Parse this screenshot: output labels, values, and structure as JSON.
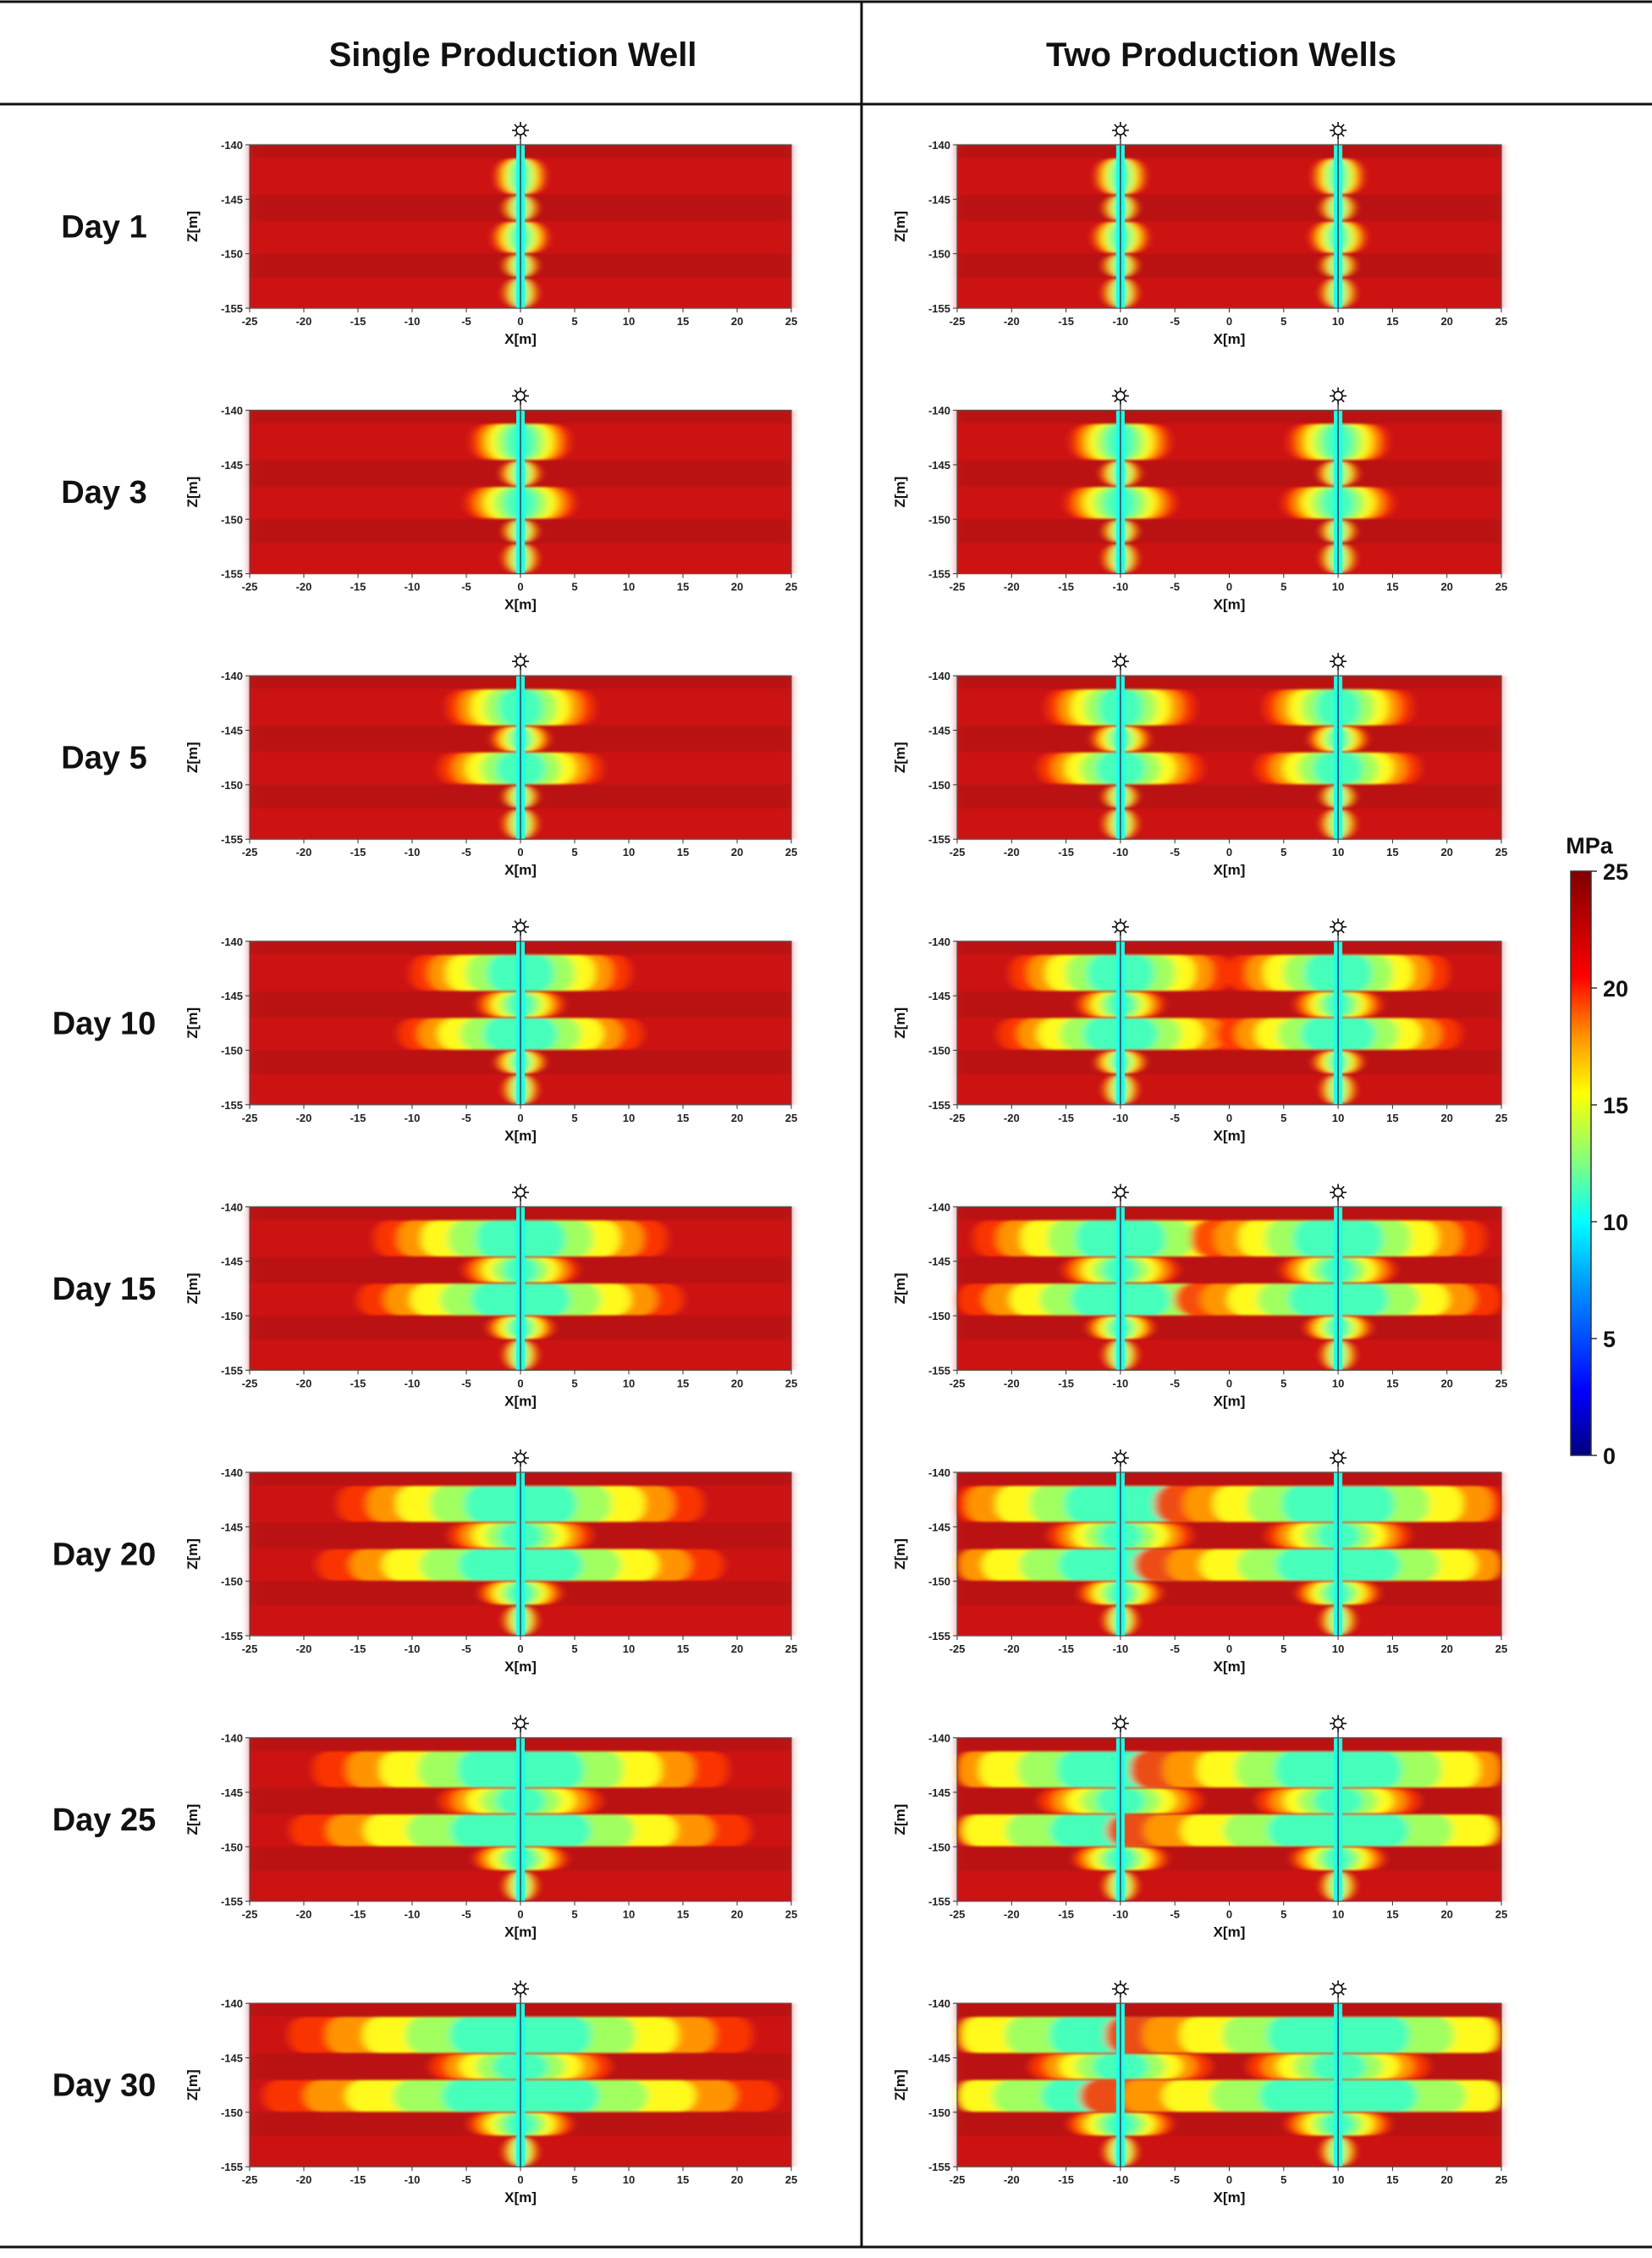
{
  "columns": [
    "Single Production Well",
    "Two Production Wells"
  ],
  "rows": [
    "Day 1",
    "Day 3",
    "Day 5",
    "Day 10",
    "Day 15",
    "Day 20",
    "Day 25",
    "Day 30"
  ],
  "chart_data": {
    "type": "heatmap",
    "panel_grid": {
      "rows": 8,
      "columns": 2
    },
    "xlabel": "X[m]",
    "ylabel": "Z[m]",
    "xlim": [
      -25,
      25
    ],
    "ylim": [
      -155,
      -140
    ],
    "xticks": [
      -25,
      -20,
      -15,
      -10,
      -5,
      0,
      5,
      10,
      15,
      20,
      25
    ],
    "yticks": [
      -140,
      -145,
      -150,
      -155
    ],
    "well_x": {
      "Single Production Well": [
        0
      ],
      "Two Production Wells": [
        -10,
        10
      ]
    },
    "pressure_drawdown_half_width_m": [
      2,
      4,
      6,
      9,
      12,
      15,
      17,
      19
    ],
    "colorbar": {
      "title": "MPa",
      "range": [
        0,
        25
      ],
      "ticks": [
        25,
        20,
        15,
        10,
        5,
        0
      ],
      "colors": [
        "#00007f",
        "#0000ff",
        "#00a0ff",
        "#00ffff",
        "#7fff7f",
        "#ffff00",
        "#ff9000",
        "#ff0000",
        "#7f0000"
      ]
    }
  }
}
